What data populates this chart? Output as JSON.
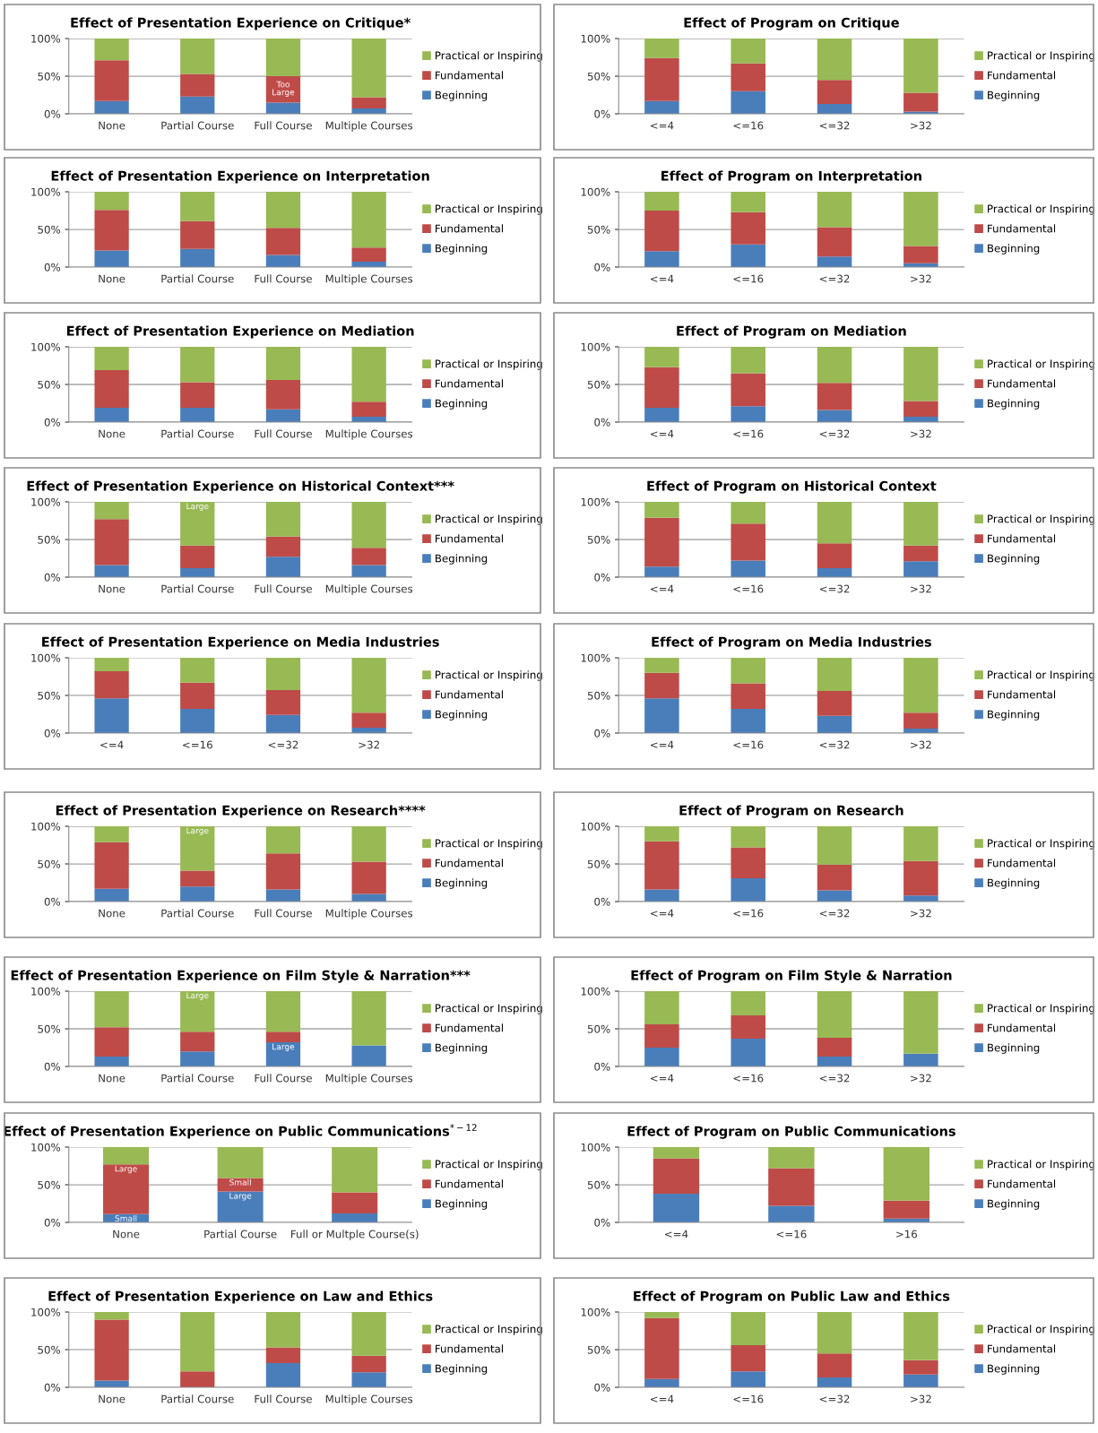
{
  "chart_data": [
    {
      "type": "bar",
      "stacked": true,
      "title": "Effect of Presentation Experience on Critique*",
      "categories": [
        "None",
        "Partial Course",
        "Full Course",
        "Multiple Courses"
      ],
      "ylim": [
        0,
        100
      ],
      "yticks": [
        {
          "value": 0,
          "label": "0%"
        },
        {
          "value": 50,
          "label": "50%"
        },
        {
          "value": 100,
          "label": "100%"
        }
      ],
      "grid": "y",
      "legend": "right",
      "annotations": [
        {
          "text": "Too\nLarge",
          "x": "Full Course",
          "y": 50
        }
      ],
      "series": [
        {
          "name": "Beginning",
          "color": "#4a7ebb",
          "values": [
            17,
            23,
            15,
            7
          ]
        },
        {
          "name": "Fundamental",
          "color": "#be4b48",
          "values": [
            54,
            30,
            35,
            15
          ]
        },
        {
          "name": "Practical or Inspiring",
          "color": "#98b954",
          "values": [
            29,
            47,
            50,
            78
          ]
        }
      ]
    },
    {
      "type": "bar",
      "stacked": true,
      "title": "Effect of Program on Critique",
      "categories": [
        "<=4",
        "<=16",
        "<=32",
        ">32"
      ],
      "ylim": [
        0,
        100
      ],
      "yticks": [
        {
          "value": 0,
          "label": "0%"
        },
        {
          "value": 50,
          "label": "50%"
        },
        {
          "value": 100,
          "label": "100%"
        }
      ],
      "grid": "y",
      "legend": "right",
      "series": [
        {
          "name": "Beginning",
          "color": "#4a7ebb",
          "values": [
            17,
            30,
            13,
            3
          ]
        },
        {
          "name": "Fundamental",
          "color": "#be4b48",
          "values": [
            57,
            37,
            32,
            25
          ]
        },
        {
          "name": "Practical or Inspiring",
          "color": "#98b954",
          "values": [
            26,
            33,
            55,
            72
          ]
        }
      ]
    },
    {
      "type": "bar",
      "stacked": true,
      "title": "Effect of Presentation Experience on Interpretation",
      "categories": [
        "None",
        "Partial Course",
        "Full Course",
        "Multiple Courses"
      ],
      "ylim": [
        0,
        100
      ],
      "yticks": [
        {
          "value": 0,
          "label": "0%"
        },
        {
          "value": 50,
          "label": "50%"
        },
        {
          "value": 100,
          "label": "100%"
        }
      ],
      "grid": "y",
      "legend": "right",
      "series": [
        {
          "name": "Beginning",
          "color": "#4a7ebb",
          "values": [
            22,
            24,
            16,
            7
          ]
        },
        {
          "name": "Fundamental",
          "color": "#be4b48",
          "values": [
            54,
            37,
            36,
            19
          ]
        },
        {
          "name": "Practical or Inspiring",
          "color": "#98b954",
          "values": [
            24,
            39,
            48,
            74
          ]
        }
      ]
    },
    {
      "type": "bar",
      "stacked": true,
      "title": "Effect of Program on Interpretation",
      "categories": [
        "<=4",
        "<=16",
        "<=32",
        ">32"
      ],
      "ylim": [
        0,
        100
      ],
      "yticks": [
        {
          "value": 0,
          "label": "0%"
        },
        {
          "value": 50,
          "label": "50%"
        },
        {
          "value": 100,
          "label": "100%"
        }
      ],
      "grid": "y",
      "legend": "right",
      "series": [
        {
          "name": "Beginning",
          "color": "#4a7ebb",
          "values": [
            21,
            30,
            14,
            5
          ]
        },
        {
          "name": "Fundamental",
          "color": "#be4b48",
          "values": [
            54,
            43,
            39,
            23
          ]
        },
        {
          "name": "Practical or Inspiring",
          "color": "#98b954",
          "values": [
            25,
            27,
            47,
            72
          ]
        }
      ]
    },
    {
      "type": "bar",
      "stacked": true,
      "title": "Effect of Presentation Experience on Mediation",
      "categories": [
        "None",
        "Partial Course",
        "Full Course",
        "Multiple Courses"
      ],
      "ylim": [
        0,
        100
      ],
      "yticks": [
        {
          "value": 0,
          "label": "0%"
        },
        {
          "value": 50,
          "label": "50%"
        },
        {
          "value": 100,
          "label": "100%"
        }
      ],
      "grid": "y",
      "legend": "right",
      "series": [
        {
          "name": "Beginning",
          "color": "#4a7ebb",
          "values": [
            19,
            19,
            17,
            7
          ]
        },
        {
          "name": "Fundamental",
          "color": "#be4b48",
          "values": [
            50,
            34,
            39,
            20
          ]
        },
        {
          "name": "Practical or Inspiring",
          "color": "#98b954",
          "values": [
            31,
            47,
            44,
            73
          ]
        }
      ]
    },
    {
      "type": "bar",
      "stacked": true,
      "title": "Effect of Program on Mediation",
      "categories": [
        "<=4",
        "<=16",
        "<=32",
        ">32"
      ],
      "ylim": [
        0,
        100
      ],
      "yticks": [
        {
          "value": 0,
          "label": "0%"
        },
        {
          "value": 50,
          "label": "50%"
        },
        {
          "value": 100,
          "label": "100%"
        }
      ],
      "grid": "y",
      "legend": "right",
      "series": [
        {
          "name": "Beginning",
          "color": "#4a7ebb",
          "values": [
            19,
            21,
            16,
            7
          ]
        },
        {
          "name": "Fundamental",
          "color": "#be4b48",
          "values": [
            54,
            44,
            36,
            21
          ]
        },
        {
          "name": "Practical or Inspiring",
          "color": "#98b954",
          "values": [
            27,
            35,
            48,
            72
          ]
        }
      ]
    },
    {
      "type": "bar",
      "stacked": true,
      "title": "Effect of Presentation Experience on Historical Context***",
      "categories": [
        "None",
        "Partial Course",
        "Full Course",
        "Multiple Courses"
      ],
      "ylim": [
        0,
        100
      ],
      "yticks": [
        {
          "value": 0,
          "label": "0%"
        },
        {
          "value": 50,
          "label": "50%"
        },
        {
          "value": 100,
          "label": "100%"
        }
      ],
      "grid": "y",
      "legend": "right",
      "annotations": [
        {
          "text": "Large",
          "x": "Partial Course",
          "y": 100
        }
      ],
      "series": [
        {
          "name": "Beginning",
          "color": "#4a7ebb",
          "values": [
            16,
            12,
            27,
            16
          ]
        },
        {
          "name": "Fundamental",
          "color": "#be4b48",
          "values": [
            61,
            30,
            27,
            23
          ]
        },
        {
          "name": "Practical or Inspiring",
          "color": "#98b954",
          "values": [
            23,
            58,
            46,
            61
          ]
        }
      ]
    },
    {
      "type": "bar",
      "stacked": true,
      "title": "Effect of Program on Historical Context",
      "categories": [
        "<=4",
        "<=16",
        "<=32",
        ">32"
      ],
      "ylim": [
        0,
        100
      ],
      "yticks": [
        {
          "value": 0,
          "label": "0%"
        },
        {
          "value": 50,
          "label": "50%"
        },
        {
          "value": 100,
          "label": "100%"
        }
      ],
      "grid": "y",
      "legend": "right",
      "series": [
        {
          "name": "Beginning",
          "color": "#4a7ebb",
          "values": [
            14,
            22,
            12,
            21
          ]
        },
        {
          "name": "Fundamental",
          "color": "#be4b48",
          "values": [
            65,
            49,
            33,
            21
          ]
        },
        {
          "name": "Practical or Inspiring",
          "color": "#98b954",
          "values": [
            21,
            29,
            55,
            58
          ]
        }
      ]
    },
    {
      "type": "bar",
      "stacked": true,
      "title": "Effect of Presentation Experience on Media Industries",
      "categories": [
        "<=4",
        "<=16",
        "<=32",
        ">32"
      ],
      "ylim": [
        0,
        100
      ],
      "yticks": [
        {
          "value": 0,
          "label": "0%"
        },
        {
          "value": 50,
          "label": "50%"
        },
        {
          "value": 100,
          "label": "100%"
        }
      ],
      "grid": "y",
      "legend": "right",
      "series": [
        {
          "name": "Beginning",
          "color": "#4a7ebb",
          "values": [
            46,
            32,
            24,
            7
          ]
        },
        {
          "name": "Fundamental",
          "color": "#be4b48",
          "values": [
            36,
            35,
            33,
            20
          ]
        },
        {
          "name": "Practical or Inspiring",
          "color": "#98b954",
          "values": [
            18,
            33,
            43,
            73
          ]
        }
      ]
    },
    {
      "type": "bar",
      "stacked": true,
      "title": "Effect of Program on Media Industries",
      "categories": [
        "<=4",
        "<=16",
        "<=32",
        ">32"
      ],
      "ylim": [
        0,
        100
      ],
      "yticks": [
        {
          "value": 0,
          "label": "0%"
        },
        {
          "value": 50,
          "label": "50%"
        },
        {
          "value": 100,
          "label": "100%"
        }
      ],
      "grid": "y",
      "legend": "right",
      "series": [
        {
          "name": "Beginning",
          "color": "#4a7ebb",
          "values": [
            46,
            32,
            23,
            6
          ]
        },
        {
          "name": "Fundamental",
          "color": "#be4b48",
          "values": [
            34,
            34,
            33,
            21
          ]
        },
        {
          "name": "Practical or Inspiring",
          "color": "#98b954",
          "values": [
            20,
            34,
            44,
            73
          ]
        }
      ]
    },
    {
      "type": "bar",
      "stacked": true,
      "title": "Effect of Presentation Experience on Research****",
      "categories": [
        "None",
        "Partial Course",
        "Full Course",
        "Multiple Courses"
      ],
      "ylim": [
        0,
        100
      ],
      "yticks": [
        {
          "value": 0,
          "label": "0%"
        },
        {
          "value": 50,
          "label": "50%"
        },
        {
          "value": 100,
          "label": "100%"
        }
      ],
      "grid": "y",
      "legend": "right",
      "annotations": [
        {
          "text": "Large",
          "x": "Partial Course",
          "y": 100
        }
      ],
      "series": [
        {
          "name": "Beginning",
          "color": "#4a7ebb",
          "values": [
            17,
            20,
            16,
            10
          ]
        },
        {
          "name": "Fundamental",
          "color": "#be4b48",
          "values": [
            62,
            21,
            48,
            43
          ]
        },
        {
          "name": "Practical or Inspiring",
          "color": "#98b954",
          "values": [
            21,
            59,
            36,
            47
          ]
        }
      ]
    },
    {
      "type": "bar",
      "stacked": true,
      "title": "Effect of Program on Research",
      "categories": [
        "<=4",
        "<=16",
        "<=32",
        ">32"
      ],
      "ylim": [
        0,
        100
      ],
      "yticks": [
        {
          "value": 0,
          "label": "0%"
        },
        {
          "value": 50,
          "label": "50%"
        },
        {
          "value": 100,
          "label": "100%"
        }
      ],
      "grid": "y",
      "legend": "right",
      "series": [
        {
          "name": "Beginning",
          "color": "#4a7ebb",
          "values": [
            16,
            31,
            15,
            8
          ]
        },
        {
          "name": "Fundamental",
          "color": "#be4b48",
          "values": [
            64,
            41,
            34,
            46
          ]
        },
        {
          "name": "Practical or Inspiring",
          "color": "#98b954",
          "values": [
            20,
            28,
            51,
            46
          ]
        }
      ]
    },
    {
      "type": "bar",
      "stacked": true,
      "title": "Effect of Presentation Experience on Film Style & Narration***",
      "categories": [
        "None",
        "Partial Course",
        "Full Course",
        "Multiple Courses"
      ],
      "ylim": [
        0,
        100
      ],
      "yticks": [
        {
          "value": 0,
          "label": "0%"
        },
        {
          "value": 50,
          "label": "50%"
        },
        {
          "value": 100,
          "label": "100%"
        }
      ],
      "grid": "y",
      "legend": "right",
      "annotations": [
        {
          "text": "Large",
          "x": "Partial Course",
          "y": 100
        },
        {
          "text": "Large",
          "x": "Full Course",
          "y": 32
        }
      ],
      "series": [
        {
          "name": "Beginning",
          "color": "#4a7ebb",
          "values": [
            13,
            20,
            32,
            28
          ]
        },
        {
          "name": "Fundamental",
          "color": "#be4b48",
          "values": [
            39,
            26,
            14,
            0
          ]
        },
        {
          "name": "Practical or Inspiring",
          "color": "#98b954",
          "values": [
            48,
            54,
            54,
            72
          ]
        }
      ]
    },
    {
      "type": "bar",
      "stacked": true,
      "title": "Effect of Program on Film Style & Narration",
      "categories": [
        "<=4",
        "<=16",
        "<=32",
        ">32"
      ],
      "ylim": [
        0,
        100
      ],
      "yticks": [
        {
          "value": 0,
          "label": "0%"
        },
        {
          "value": 50,
          "label": "50%"
        },
        {
          "value": 100,
          "label": "100%"
        }
      ],
      "grid": "y",
      "legend": "right",
      "series": [
        {
          "name": "Beginning",
          "color": "#4a7ebb",
          "values": [
            25,
            37,
            13,
            17
          ]
        },
        {
          "name": "Fundamental",
          "color": "#be4b48",
          "values": [
            31,
            31,
            25,
            0
          ]
        },
        {
          "name": "Practical or Inspiring",
          "color": "#98b954",
          "values": [
            44,
            32,
            62,
            83
          ]
        }
      ]
    },
    {
      "type": "bar",
      "stacked": true,
      "title": "Effect of Presentation Experience on Public Communications$^{*−12}$",
      "categories": [
        "None",
        "Partial Course",
        "Full or Multple Course(s)"
      ],
      "ylim": [
        0,
        100
      ],
      "yticks": [
        {
          "value": 0,
          "label": "0%"
        },
        {
          "value": 50,
          "label": "50%"
        },
        {
          "value": 100,
          "label": "100%"
        }
      ],
      "grid": "y",
      "legend": "right",
      "annotations": [
        {
          "text": "Large",
          "x": "None",
          "y": 77
        },
        {
          "text": "Small",
          "x": "None",
          "y": 11
        },
        {
          "text": "Small",
          "x": "Partial Course",
          "y": 59
        },
        {
          "text": "Large",
          "x": "Partial Course",
          "y": 41
        }
      ],
      "series": [
        {
          "name": "Beginning",
          "color": "#4a7ebb",
          "values": [
            11,
            41,
            12
          ]
        },
        {
          "name": "Fundamental",
          "color": "#be4b48",
          "values": [
            66,
            18,
            28
          ]
        },
        {
          "name": "Practical or Inspiring",
          "color": "#98b954",
          "values": [
            23,
            41,
            60
          ]
        }
      ]
    },
    {
      "type": "bar",
      "stacked": true,
      "title": "Effect of Program on Public Communications",
      "categories": [
        "<=4",
        "<=16",
        ">16"
      ],
      "ylim": [
        0,
        100
      ],
      "yticks": [
        {
          "value": 0,
          "label": "0%"
        },
        {
          "value": 50,
          "label": "50%"
        },
        {
          "value": 100,
          "label": "100%"
        }
      ],
      "grid": "y",
      "legend": "right",
      "series": [
        {
          "name": "Beginning",
          "color": "#4a7ebb",
          "values": [
            38,
            22,
            5
          ]
        },
        {
          "name": "Fundamental",
          "color": "#be4b48",
          "values": [
            47,
            50,
            24
          ]
        },
        {
          "name": "Practical or Inspiring",
          "color": "#98b954",
          "values": [
            15,
            28,
            71
          ]
        }
      ]
    },
    {
      "type": "bar",
      "stacked": true,
      "title": "Effect of Presentation Experience on Law and Ethics",
      "categories": [
        "None",
        "Partial Course",
        "Full Course",
        "Multiple Courses"
      ],
      "ylim": [
        0,
        100
      ],
      "yticks": [
        {
          "value": 0,
          "label": "0%"
        },
        {
          "value": 50,
          "label": "50%"
        },
        {
          "value": 100,
          "label": "100%"
        }
      ],
      "grid": "y",
      "legend": "right",
      "series": [
        {
          "name": "Beginning",
          "color": "#4a7ebb",
          "values": [
            9,
            0,
            32,
            20
          ]
        },
        {
          "name": "Fundamental",
          "color": "#be4b48",
          "values": [
            81,
            21,
            21,
            22
          ]
        },
        {
          "name": "Practical or Inspiring",
          "color": "#98b954",
          "values": [
            10,
            79,
            47,
            58
          ]
        }
      ]
    },
    {
      "type": "bar",
      "stacked": true,
      "title": "Effect of Program on Public Law and Ethics",
      "categories": [
        "<=4",
        "<=16",
        "<=32",
        ">32"
      ],
      "ylim": [
        0,
        100
      ],
      "yticks": [
        {
          "value": 0,
          "label": "0%"
        },
        {
          "value": 50,
          "label": "50%"
        },
        {
          "value": 100,
          "label": "100%"
        }
      ],
      "grid": "y",
      "legend": "right",
      "series": [
        {
          "name": "Beginning",
          "color": "#4a7ebb",
          "values": [
            11,
            21,
            13,
            17
          ]
        },
        {
          "name": "Fundamental",
          "color": "#be4b48",
          "values": [
            81,
            35,
            32,
            19
          ]
        },
        {
          "name": "Practical or Inspiring",
          "color": "#98b954",
          "values": [
            8,
            44,
            55,
            64
          ]
        }
      ]
    }
  ]
}
